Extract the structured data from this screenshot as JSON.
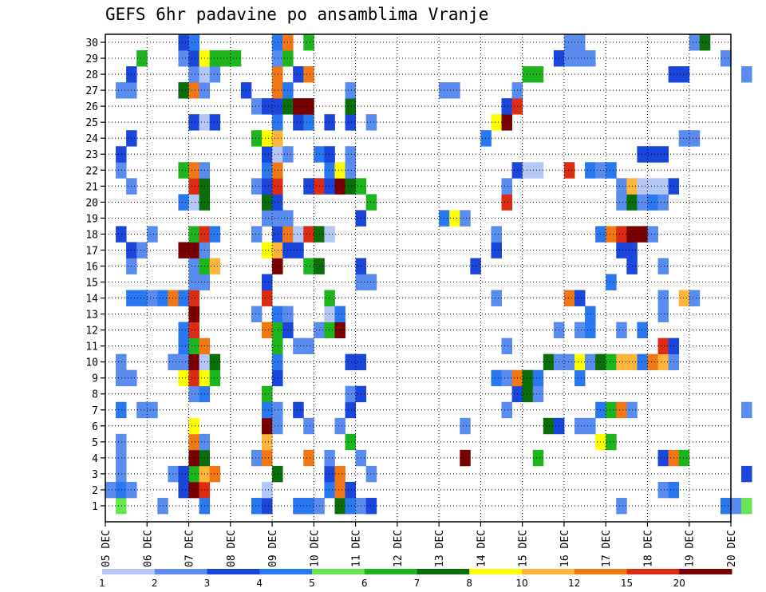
{
  "chart_data": {
    "type": "heatmap",
    "title": "GEFS 6hr padavine po ansamblima Vranje",
    "xlabel": "",
    "ylabel": "",
    "y_ticks": [
      1,
      2,
      3,
      4,
      5,
      6,
      7,
      8,
      9,
      10,
      11,
      12,
      13,
      14,
      15,
      16,
      17,
      18,
      19,
      20,
      21,
      22,
      23,
      24,
      25,
      26,
      27,
      28,
      29,
      30
    ],
    "x_ticks": [
      "05 DEC",
      "06 DEC",
      "07 DEC",
      "08 DEC",
      "09 DEC",
      "10 DEC",
      "11 DEC",
      "12 DEC",
      "13 DEC",
      "14 DEC",
      "15 DEC",
      "16 DEC",
      "17 DEC",
      "18 DEC",
      "19 DEC",
      "20 DEC"
    ],
    "steps_per_day": 4,
    "members": 30,
    "grid": true,
    "colorbar": {
      "ticks": [
        "1",
        "2",
        "3",
        "4",
        "5",
        "6",
        "7",
        "8",
        "10",
        "12",
        "15",
        "20"
      ],
      "colors": [
        "#b4c8f8",
        "#5a8cf0",
        "#1a46dc",
        "#2a78f0",
        "#66e650",
        "#1eb41e",
        "#0a6e0a",
        "#ffff00",
        "#ffb43c",
        "#f07814",
        "#dc2d14",
        "#780000",
        "#b4c8f8"
      ]
    },
    "class_values": [
      1.5,
      2.5,
      3.5,
      4.5,
      5.5,
      6.5,
      7.5,
      9,
      11,
      13.5,
      17.5,
      25
    ],
    "cells": [
      [
        1,
        1,
        4
      ],
      [
        1,
        5,
        1
      ],
      [
        1,
        9,
        3
      ],
      [
        1,
        14,
        3
      ],
      [
        1,
        15,
        2
      ],
      [
        1,
        18,
        3
      ],
      [
        1,
        19,
        3
      ],
      [
        1,
        20,
        1
      ],
      [
        1,
        22,
        6
      ],
      [
        1,
        23,
        3
      ],
      [
        1,
        24,
        1
      ],
      [
        1,
        25,
        2
      ],
      [
        1,
        49,
        1
      ],
      [
        1,
        59,
        3
      ],
      [
        1,
        60,
        1
      ],
      [
        1,
        61,
        4
      ],
      [
        2,
        0,
        1
      ],
      [
        2,
        1,
        3
      ],
      [
        2,
        2,
        1
      ],
      [
        2,
        7,
        2
      ],
      [
        2,
        8,
        11
      ],
      [
        2,
        9,
        10
      ],
      [
        2,
        15,
        12
      ],
      [
        2,
        21,
        3
      ],
      [
        2,
        22,
        9
      ],
      [
        2,
        23,
        2
      ],
      [
        2,
        53,
        1
      ],
      [
        2,
        54,
        3
      ],
      [
        3,
        1,
        1
      ],
      [
        3,
        6,
        1
      ],
      [
        3,
        7,
        2
      ],
      [
        3,
        8,
        5
      ],
      [
        3,
        9,
        8
      ],
      [
        3,
        10,
        9
      ],
      [
        3,
        16,
        6
      ],
      [
        3,
        21,
        2
      ],
      [
        3,
        22,
        9
      ],
      [
        3,
        25,
        1
      ],
      [
        3,
        61,
        2
      ],
      [
        4,
        1,
        1
      ],
      [
        4,
        8,
        11
      ],
      [
        4,
        9,
        6
      ],
      [
        4,
        14,
        1
      ],
      [
        4,
        15,
        9
      ],
      [
        4,
        19,
        9
      ],
      [
        4,
        21,
        1
      ],
      [
        4,
        24,
        1
      ],
      [
        4,
        34,
        11
      ],
      [
        4,
        41,
        5
      ],
      [
        4,
        53,
        2
      ],
      [
        4,
        54,
        9
      ],
      [
        4,
        55,
        5
      ],
      [
        5,
        1,
        1
      ],
      [
        5,
        8,
        9
      ],
      [
        5,
        9,
        1
      ],
      [
        5,
        15,
        8
      ],
      [
        5,
        23,
        5
      ],
      [
        5,
        47,
        7
      ],
      [
        5,
        48,
        5
      ],
      [
        6,
        8,
        7
      ],
      [
        6,
        15,
        11
      ],
      [
        6,
        16,
        1
      ],
      [
        6,
        19,
        1
      ],
      [
        6,
        22,
        1
      ],
      [
        6,
        34,
        1
      ],
      [
        6,
        42,
        6
      ],
      [
        6,
        43,
        2
      ],
      [
        6,
        45,
        1
      ],
      [
        6,
        46,
        1
      ],
      [
        7,
        1,
        3
      ],
      [
        7,
        3,
        1
      ],
      [
        7,
        4,
        1
      ],
      [
        7,
        15,
        3
      ],
      [
        7,
        16,
        1
      ],
      [
        7,
        18,
        2
      ],
      [
        7,
        23,
        2
      ],
      [
        7,
        38,
        1
      ],
      [
        7,
        47,
        3
      ],
      [
        7,
        48,
        5
      ],
      [
        7,
        49,
        9
      ],
      [
        7,
        50,
        1
      ],
      [
        7,
        61,
        1
      ],
      [
        8,
        8,
        1
      ],
      [
        8,
        9,
        3
      ],
      [
        8,
        15,
        5
      ],
      [
        8,
        23,
        1
      ],
      [
        8,
        24,
        2
      ],
      [
        8,
        39,
        2
      ],
      [
        8,
        40,
        6
      ],
      [
        8,
        41,
        1
      ],
      [
        9,
        1,
        1
      ],
      [
        9,
        2,
        1
      ],
      [
        9,
        7,
        7
      ],
      [
        9,
        8,
        10
      ],
      [
        9,
        9,
        7
      ],
      [
        9,
        10,
        5
      ],
      [
        9,
        16,
        2
      ],
      [
        9,
        37,
        3
      ],
      [
        9,
        38,
        1
      ],
      [
        9,
        39,
        9
      ],
      [
        9,
        40,
        6
      ],
      [
        9,
        41,
        3
      ],
      [
        9,
        45,
        3
      ],
      [
        10,
        1,
        1
      ],
      [
        10,
        6,
        1
      ],
      [
        10,
        7,
        1
      ],
      [
        10,
        8,
        11
      ],
      [
        10,
        9,
        12
      ],
      [
        10,
        10,
        6
      ],
      [
        10,
        16,
        3
      ],
      [
        10,
        23,
        2
      ],
      [
        10,
        24,
        2
      ],
      [
        10,
        42,
        6
      ],
      [
        10,
        43,
        1
      ],
      [
        10,
        44,
        1
      ],
      [
        10,
        45,
        7
      ],
      [
        10,
        46,
        1
      ],
      [
        10,
        47,
        6
      ],
      [
        10,
        48,
        5
      ],
      [
        10,
        49,
        8
      ],
      [
        10,
        50,
        8
      ],
      [
        10,
        51,
        3
      ],
      [
        10,
        52,
        9
      ],
      [
        10,
        53,
        8
      ],
      [
        10,
        54,
        1
      ],
      [
        11,
        7,
        3
      ],
      [
        11,
        8,
        5
      ],
      [
        11,
        9,
        9
      ],
      [
        11,
        16,
        5
      ],
      [
        11,
        18,
        1
      ],
      [
        11,
        19,
        1
      ],
      [
        11,
        38,
        1
      ],
      [
        11,
        53,
        10
      ],
      [
        11,
        54,
        2
      ],
      [
        12,
        7,
        3
      ],
      [
        12,
        8,
        10
      ],
      [
        12,
        15,
        9
      ],
      [
        12,
        16,
        5
      ],
      [
        12,
        17,
        2
      ],
      [
        12,
        20,
        1
      ],
      [
        12,
        21,
        5
      ],
      [
        12,
        22,
        11
      ],
      [
        12,
        43,
        1
      ],
      [
        12,
        45,
        1
      ],
      [
        12,
        46,
        3
      ],
      [
        12,
        49,
        1
      ],
      [
        12,
        51,
        3
      ],
      [
        13,
        8,
        11
      ],
      [
        13,
        14,
        1
      ],
      [
        13,
        16,
        3
      ],
      [
        13,
        17,
        1
      ],
      [
        13,
        21,
        12
      ],
      [
        13,
        22,
        3
      ],
      [
        13,
        46,
        3
      ],
      [
        13,
        53,
        1
      ],
      [
        14,
        2,
        3
      ],
      [
        14,
        3,
        3
      ],
      [
        14,
        4,
        1
      ],
      [
        14,
        5,
        3
      ],
      [
        14,
        6,
        9
      ],
      [
        14,
        7,
        3
      ],
      [
        14,
        8,
        10
      ],
      [
        14,
        15,
        10
      ],
      [
        14,
        21,
        5
      ],
      [
        14,
        37,
        1
      ],
      [
        14,
        44,
        9
      ],
      [
        14,
        45,
        2
      ],
      [
        14,
        53,
        1
      ],
      [
        14,
        55,
        8
      ],
      [
        14,
        56,
        1
      ],
      [
        15,
        8,
        1
      ],
      [
        15,
        9,
        1
      ],
      [
        15,
        15,
        2
      ],
      [
        15,
        24,
        1
      ],
      [
        15,
        25,
        1
      ],
      [
        15,
        48,
        3
      ],
      [
        16,
        2,
        1
      ],
      [
        16,
        8,
        1
      ],
      [
        16,
        9,
        5
      ],
      [
        16,
        10,
        8
      ],
      [
        16,
        16,
        11
      ],
      [
        16,
        19,
        5
      ],
      [
        16,
        20,
        6
      ],
      [
        16,
        24,
        2
      ],
      [
        16,
        35,
        2
      ],
      [
        16,
        50,
        2
      ],
      [
        16,
        53,
        1
      ],
      [
        17,
        2,
        2
      ],
      [
        17,
        3,
        1
      ],
      [
        17,
        7,
        11
      ],
      [
        17,
        8,
        11
      ],
      [
        17,
        9,
        1
      ],
      [
        17,
        15,
        7
      ],
      [
        17,
        16,
        8
      ],
      [
        17,
        17,
        2
      ],
      [
        17,
        18,
        2
      ],
      [
        17,
        37,
        2
      ],
      [
        17,
        49,
        2
      ],
      [
        17,
        50,
        2
      ],
      [
        18,
        1,
        2
      ],
      [
        18,
        4,
        1
      ],
      [
        18,
        8,
        5
      ],
      [
        18,
        9,
        10
      ],
      [
        18,
        10,
        3
      ],
      [
        18,
        14,
        1
      ],
      [
        18,
        16,
        2
      ],
      [
        18,
        17,
        9
      ],
      [
        18,
        18,
        12
      ],
      [
        18,
        19,
        10
      ],
      [
        18,
        20,
        6
      ],
      [
        18,
        21,
        12
      ],
      [
        18,
        37,
        1
      ],
      [
        18,
        47,
        3
      ],
      [
        18,
        48,
        9
      ],
      [
        18,
        49,
        10
      ],
      [
        18,
        50,
        11
      ],
      [
        18,
        51,
        11
      ],
      [
        18,
        52,
        1
      ],
      [
        19,
        15,
        1
      ],
      [
        19,
        16,
        1
      ],
      [
        19,
        17,
        1
      ],
      [
        19,
        24,
        2
      ],
      [
        19,
        32,
        3
      ],
      [
        19,
        33,
        7
      ],
      [
        19,
        34,
        1
      ],
      [
        20,
        7,
        3
      ],
      [
        20,
        8,
        12
      ],
      [
        20,
        9,
        6
      ],
      [
        20,
        15,
        6
      ],
      [
        20,
        16,
        2
      ],
      [
        20,
        25,
        5
      ],
      [
        20,
        38,
        10
      ],
      [
        20,
        49,
        1
      ],
      [
        20,
        50,
        6
      ],
      [
        20,
        51,
        1
      ],
      [
        20,
        52,
        3
      ],
      [
        20,
        53,
        1
      ],
      [
        21,
        2,
        1
      ],
      [
        21,
        8,
        10
      ],
      [
        21,
        9,
        6
      ],
      [
        21,
        14,
        1
      ],
      [
        21,
        15,
        2
      ],
      [
        21,
        16,
        10
      ],
      [
        21,
        19,
        2
      ],
      [
        21,
        20,
        10
      ],
      [
        21,
        21,
        2
      ],
      [
        21,
        22,
        11
      ],
      [
        21,
        23,
        6
      ],
      [
        21,
        24,
        5
      ],
      [
        21,
        38,
        1
      ],
      [
        21,
        49,
        1
      ],
      [
        21,
        50,
        8
      ],
      [
        21,
        51,
        12
      ],
      [
        21,
        52,
        12
      ],
      [
        21,
        53,
        12
      ],
      [
        21,
        54,
        2
      ],
      [
        22,
        1,
        1
      ],
      [
        22,
        7,
        5
      ],
      [
        22,
        8,
        9
      ],
      [
        22,
        9,
        1
      ],
      [
        22,
        15,
        3
      ],
      [
        22,
        16,
        9
      ],
      [
        22,
        21,
        3
      ],
      [
        22,
        22,
        7
      ],
      [
        22,
        23,
        1
      ],
      [
        22,
        39,
        2
      ],
      [
        22,
        40,
        12
      ],
      [
        22,
        41,
        12
      ],
      [
        22,
        44,
        10
      ],
      [
        22,
        46,
        3
      ],
      [
        22,
        47,
        1
      ],
      [
        22,
        48,
        3
      ],
      [
        23,
        1,
        2
      ],
      [
        23,
        15,
        2
      ],
      [
        23,
        16,
        12
      ],
      [
        23,
        17,
        1
      ],
      [
        23,
        20,
        3
      ],
      [
        23,
        21,
        2
      ],
      [
        23,
        23,
        1
      ],
      [
        23,
        51,
        2
      ],
      [
        23,
        52,
        2
      ],
      [
        23,
        53,
        2
      ],
      [
        24,
        2,
        2
      ],
      [
        24,
        14,
        5
      ],
      [
        24,
        15,
        7
      ],
      [
        24,
        16,
        8
      ],
      [
        24,
        36,
        3
      ],
      [
        24,
        55,
        1
      ],
      [
        24,
        56,
        1
      ],
      [
        25,
        8,
        2
      ],
      [
        25,
        9,
        12
      ],
      [
        25,
        10,
        2
      ],
      [
        25,
        16,
        3
      ],
      [
        25,
        18,
        2
      ],
      [
        25,
        19,
        3
      ],
      [
        25,
        21,
        2
      ],
      [
        25,
        23,
        2
      ],
      [
        25,
        25,
        1
      ],
      [
        25,
        37,
        7
      ],
      [
        25,
        38,
        11
      ],
      [
        26,
        14,
        1
      ],
      [
        26,
        15,
        2
      ],
      [
        26,
        16,
        2
      ],
      [
        26,
        17,
        6
      ],
      [
        26,
        18,
        11
      ],
      [
        26,
        19,
        11
      ],
      [
        26,
        23,
        6
      ],
      [
        26,
        38,
        2
      ],
      [
        26,
        39,
        10
      ],
      [
        27,
        1,
        1
      ],
      [
        27,
        2,
        1
      ],
      [
        27,
        7,
        6
      ],
      [
        27,
        8,
        9
      ],
      [
        27,
        9,
        1
      ],
      [
        27,
        13,
        2
      ],
      [
        27,
        16,
        9
      ],
      [
        27,
        17,
        3
      ],
      [
        27,
        23,
        1
      ],
      [
        27,
        32,
        1
      ],
      [
        27,
        33,
        1
      ],
      [
        27,
        39,
        1
      ],
      [
        28,
        2,
        2
      ],
      [
        28,
        8,
        1
      ],
      [
        28,
        9,
        12
      ],
      [
        28,
        10,
        1
      ],
      [
        28,
        16,
        9
      ],
      [
        28,
        18,
        2
      ],
      [
        28,
        19,
        9
      ],
      [
        28,
        40,
        5
      ],
      [
        28,
        41,
        5
      ],
      [
        28,
        54,
        2
      ],
      [
        28,
        55,
        2
      ],
      [
        28,
        61,
        1
      ],
      [
        29,
        3,
        5
      ],
      [
        29,
        7,
        1
      ],
      [
        29,
        8,
        2
      ],
      [
        29,
        9,
        7
      ],
      [
        29,
        10,
        5
      ],
      [
        29,
        11,
        5
      ],
      [
        29,
        12,
        5
      ],
      [
        29,
        16,
        1
      ],
      [
        29,
        17,
        5
      ],
      [
        29,
        43,
        2
      ],
      [
        29,
        44,
        1
      ],
      [
        29,
        45,
        1
      ],
      [
        29,
        46,
        1
      ],
      [
        29,
        59,
        1
      ],
      [
        30,
        7,
        2
      ],
      [
        30,
        8,
        3
      ],
      [
        30,
        16,
        3
      ],
      [
        30,
        17,
        9
      ],
      [
        30,
        19,
        5
      ],
      [
        30,
        44,
        1
      ],
      [
        30,
        45,
        1
      ],
      [
        30,
        56,
        1
      ],
      [
        30,
        57,
        6
      ]
    ]
  }
}
